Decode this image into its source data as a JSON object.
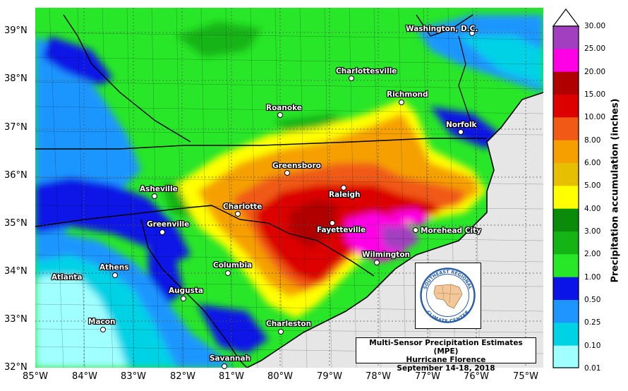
{
  "lat_labels": [
    "39°N",
    "38°N",
    "37°N",
    "36°N",
    "35°N",
    "34°N",
    "33°N",
    "32°N"
  ],
  "lon_labels": [
    "85°W",
    "84°W",
    "83°W",
    "82°W",
    "81°W",
    "80°W",
    "79°W",
    "78°W",
    "77°W",
    "76°W",
    "75°W"
  ],
  "cities": [
    {
      "name": "Washington, D.C."
    },
    {
      "name": "Charlottesville"
    },
    {
      "name": "Richmond"
    },
    {
      "name": "Roanoke"
    },
    {
      "name": "Norfolk"
    },
    {
      "name": "Greensboro"
    },
    {
      "name": "Asheville"
    },
    {
      "name": "Raleigh"
    },
    {
      "name": "Charlotte"
    },
    {
      "name": "Greenville"
    },
    {
      "name": "Fayetteville"
    },
    {
      "name": "Morehead City"
    },
    {
      "name": "Wilmington"
    },
    {
      "name": "Columbia"
    },
    {
      "name": "Athens"
    },
    {
      "name": "Atlanta"
    },
    {
      "name": "Augusta"
    },
    {
      "name": "Macon"
    },
    {
      "name": "Charleston"
    },
    {
      "name": "Savannah"
    }
  ],
  "title_box": {
    "line1": "Multi-Sensor Precipitation Estimates (MPE)",
    "line2": "Hurricane Florence",
    "line3": "September 14-18, 2018"
  },
  "logo": {
    "top_text": "SOUTHEAST REGIONAL",
    "bottom_text": "CLIMATE CENTER"
  },
  "colorbar": {
    "title": "Precipitation accumulation (inches)",
    "levels": [
      "30.00",
      "25.00",
      "20.00",
      "15.00",
      "10.00",
      "8.00",
      "6.00",
      "5.00",
      "4.00",
      "3.00",
      "2.00",
      "1.00",
      "0.50",
      "0.25",
      "0.10",
      "0.01"
    ],
    "colors": [
      "#a040c0",
      "#ff00e6",
      "#b00000",
      "#dc0000",
      "#f05a14",
      "#f5a000",
      "#e6c000",
      "#ffff00",
      "#0a8c0a",
      "#14b414",
      "#28e628",
      "#0a14e6",
      "#1e96ff",
      "#00d2e6",
      "#a0ffff"
    ]
  }
}
